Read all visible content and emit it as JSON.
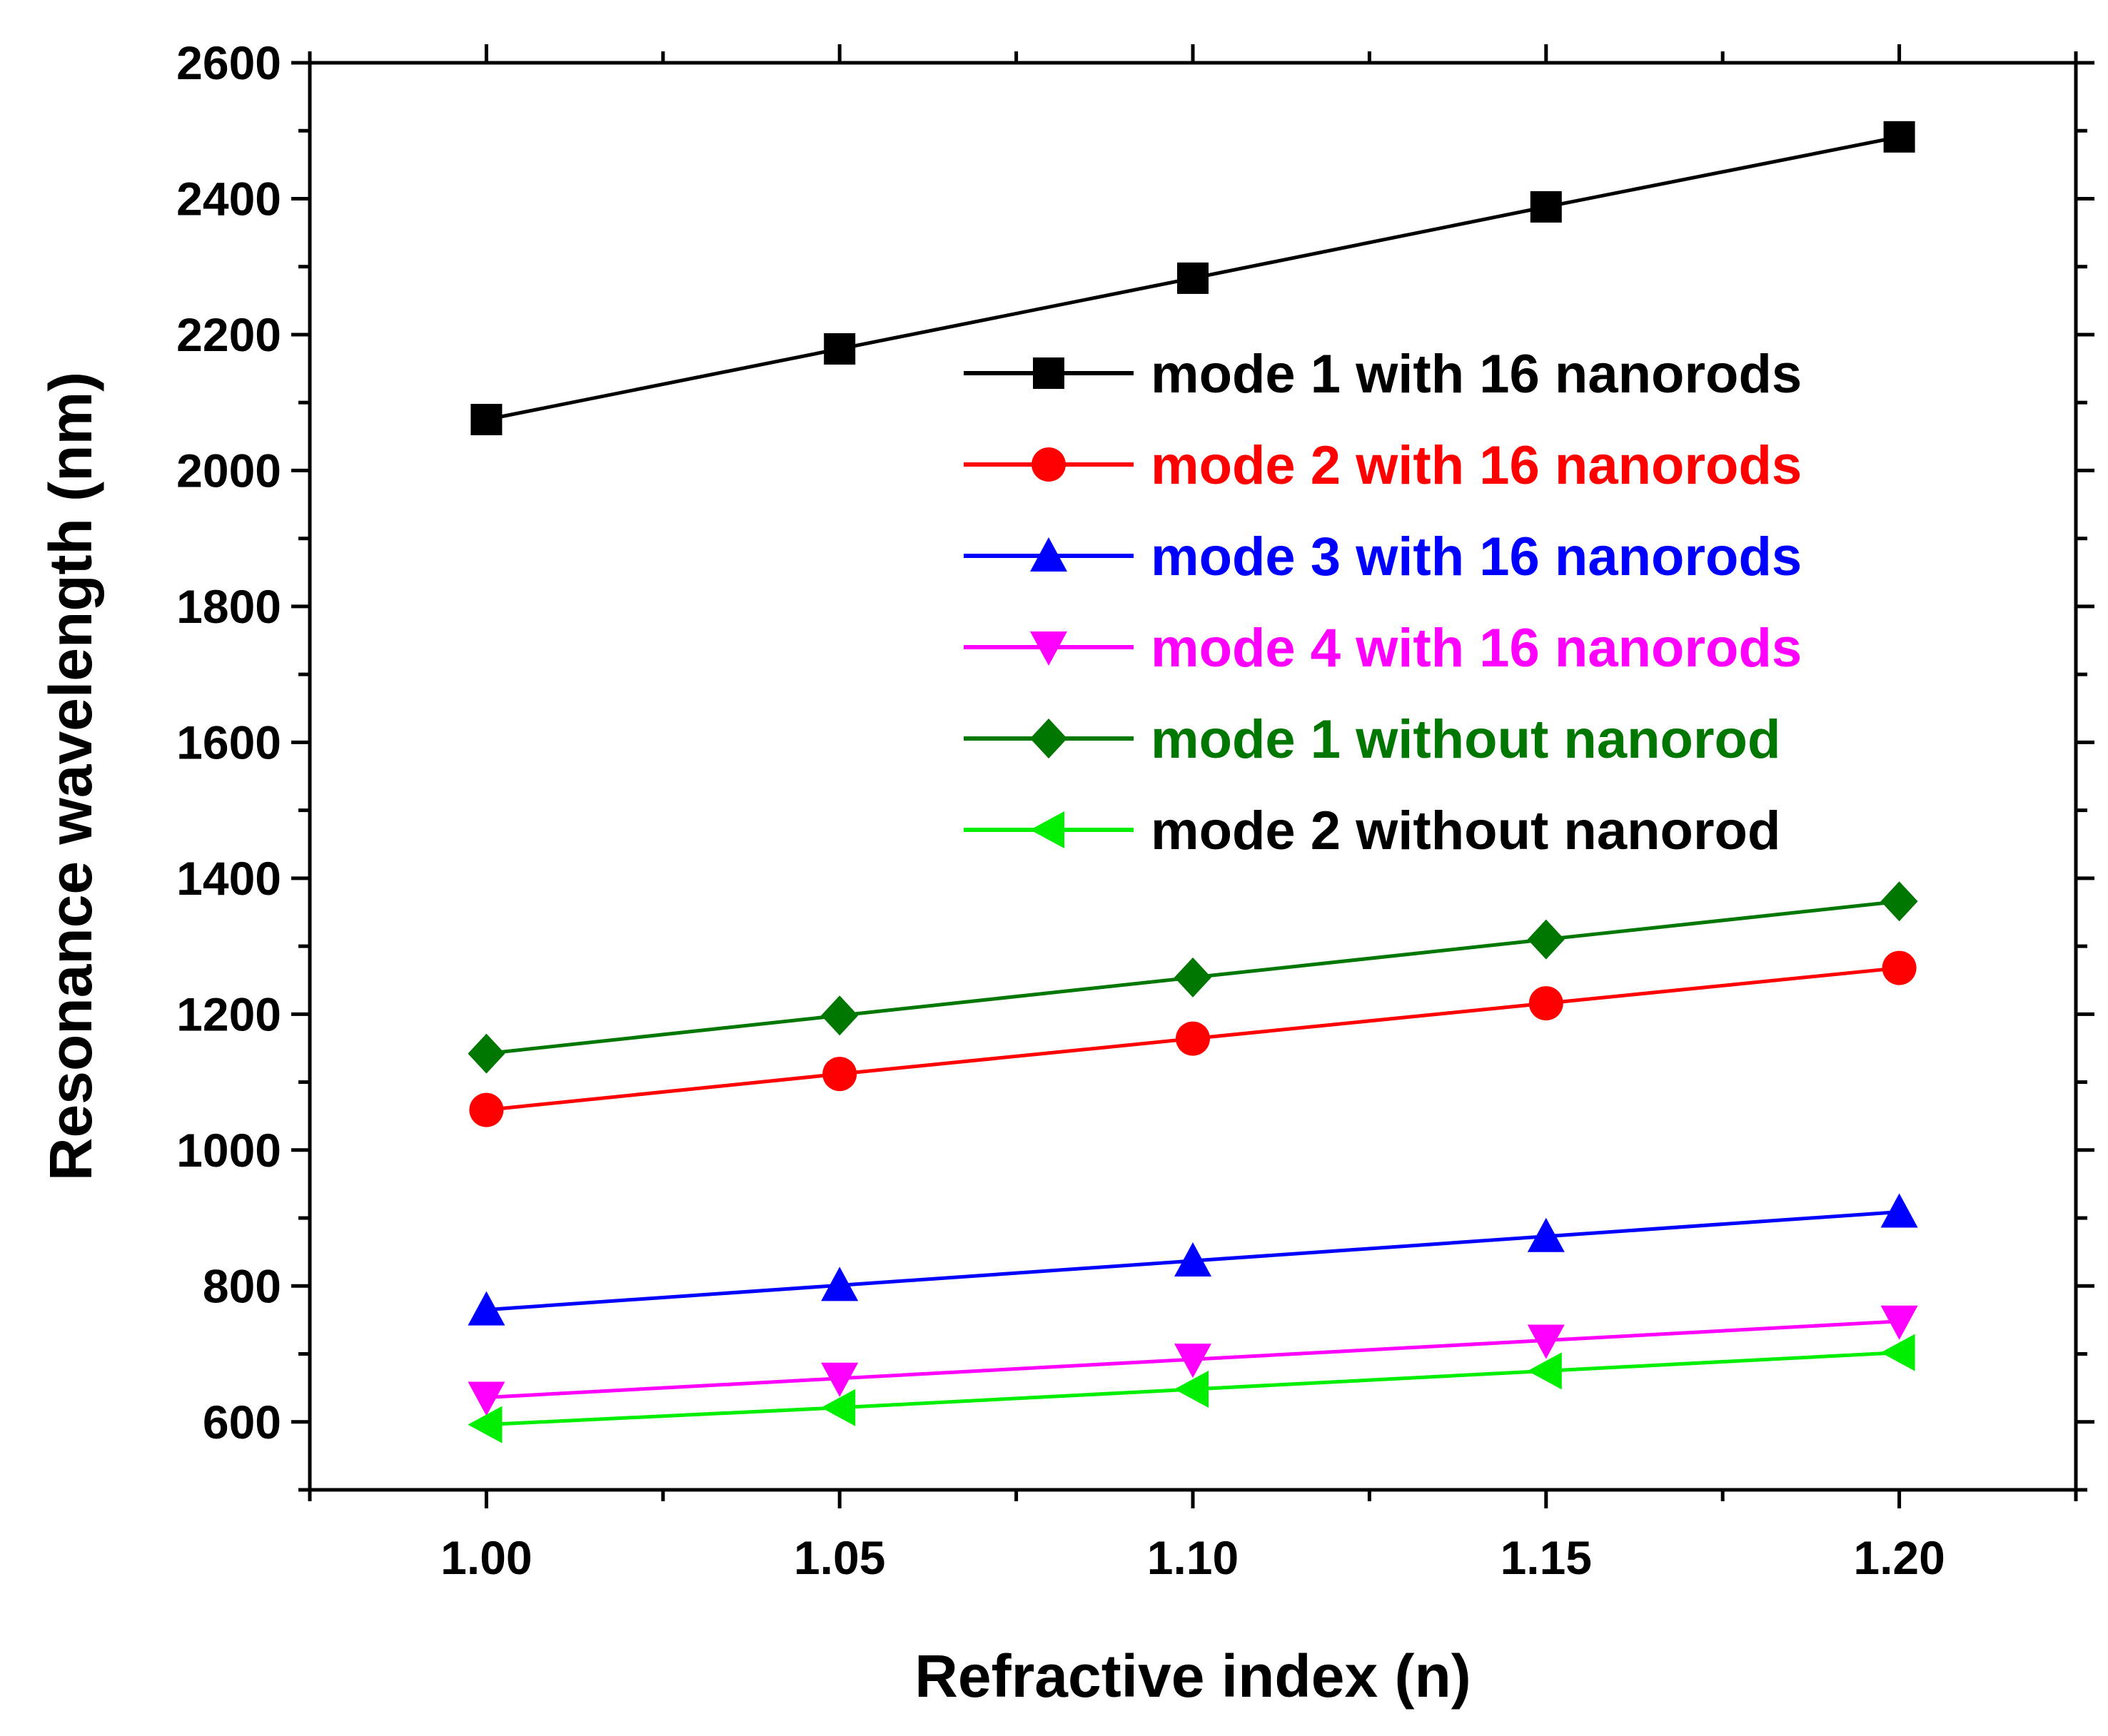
{
  "chart_data": {
    "type": "line",
    "xlabel": "Refractive index (n)",
    "ylabel": "Resonance wavelength (nm)",
    "xlim": [
      0.975,
      1.225
    ],
    "ylim": [
      500,
      2600
    ],
    "xticks": [
      1.0,
      1.05,
      1.1,
      1.15,
      1.2
    ],
    "xtick_labels": [
      "1.00",
      "1.05",
      "1.10",
      "1.15",
      "1.20"
    ],
    "yticks": [
      600,
      800,
      1000,
      1200,
      1400,
      1600,
      1800,
      2000,
      2200,
      2400,
      2600
    ],
    "ytick_labels": [
      "600",
      "800",
      "1000",
      "1200",
      "1400",
      "1600",
      "1800",
      "2000",
      "2200",
      "2400",
      "2600"
    ],
    "legend_position": "top-right",
    "x": [
      1.0,
      1.05,
      1.1,
      1.15,
      1.2
    ],
    "series": [
      {
        "name": "mode 1 with 16 nanorods",
        "color": "#000000",
        "marker": "square",
        "label_color": "#000000",
        "values": [
          2075,
          2179,
          2283,
          2388,
          2491
        ]
      },
      {
        "name": "mode 2 with 16 nanorods",
        "color": "#ff0000",
        "marker": "circle",
        "label_color": "#ff0000",
        "values": [
          1059,
          1112,
          1164,
          1216,
          1268
        ]
      },
      {
        "name": "mode 3 with 16 nanorods",
        "color": "#0000ff",
        "marker": "triangle-up",
        "label_color": "#0000ff",
        "values": [
          765,
          801,
          837,
          873,
          909
        ]
      },
      {
        "name": "mode 4 with 16 nanorods",
        "color": "#ff00ff",
        "marker": "triangle-down",
        "label_color": "#ff00ff",
        "values": [
          636,
          664,
          692,
          720,
          748
        ]
      },
      {
        "name": "mode 1 without nanorod",
        "color": "#007700",
        "marker": "diamond",
        "label_color": "#007700",
        "values": [
          1142,
          1198,
          1254,
          1310,
          1366
        ]
      },
      {
        "name": "mode 2 without nanorod",
        "color": "#00ee00",
        "marker": "triangle-left",
        "label_color": "#000000",
        "values": [
          596,
          621,
          648,
          675,
          702
        ]
      }
    ]
  }
}
